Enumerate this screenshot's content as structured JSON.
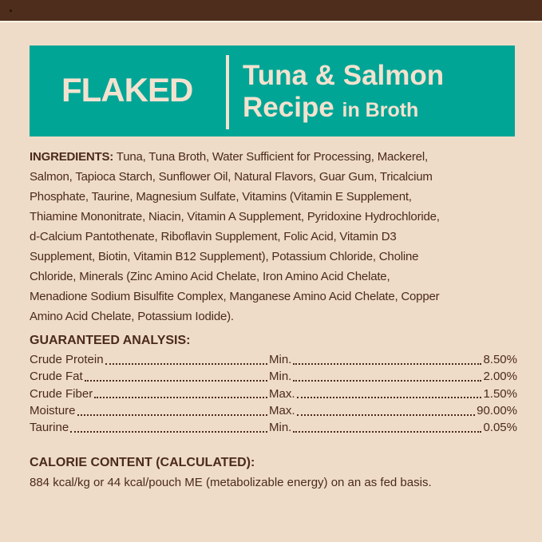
{
  "colors": {
    "background": "#efdcc8",
    "band": "#4e2d1c",
    "banner": "#00a596",
    "banner_text": "#f3e2cf",
    "text": "#4a2b1b"
  },
  "banner": {
    "style": "FLAKED",
    "title_line1": "Tuna & Salmon",
    "title_line2": "Recipe",
    "title_suffix": "in Broth"
  },
  "ingredients": {
    "label": "INGREDIENTS:",
    "lines": [
      " Tuna, Tuna Broth, Water Sufficient for Processing, Mackerel,",
      "Salmon, Tapioca Starch, Sunflower Oil, Natural Flavors, Guar Gum, Tricalcium",
      "Phosphate, Taurine, Magnesium Sulfate, Vitamins (Vitamin E Supplement,",
      "Thiamine Mononitrate, Niacin, Vitamin A Supplement, Pyridoxine Hydrochloride,",
      "d-Calcium Pantothenate, Riboflavin Supplement, Folic Acid, Vitamin D3",
      "Supplement, Biotin, Vitamin B12 Supplement), Potassium Chloride, Choline",
      "Chloride, Minerals (Zinc Amino Acid Chelate, Iron Amino Acid Chelate,",
      "Menadione Sodium Bisulfite Complex, Manganese Amino Acid Chelate, Copper",
      "Amino Acid Chelate, Potassium Iodide)."
    ]
  },
  "analysis": {
    "heading": "GUARANTEED ANALYSIS:",
    "rows": [
      {
        "name": "Crude Protein",
        "basis": "Min.",
        "value": "8.50%"
      },
      {
        "name": "Crude Fat",
        "basis": "Min.",
        "value": "2.00%"
      },
      {
        "name": "Crude Fiber",
        "basis": "Max.",
        "value": "1.50%"
      },
      {
        "name": "Moisture",
        "basis": "Max.",
        "value": "90.00%"
      },
      {
        "name": "Taurine",
        "basis": "Min.",
        "value": "0.05%"
      }
    ]
  },
  "calorie": {
    "heading": "CALORIE CONTENT (CALCULATED):",
    "text": "884 kcal/kg or 44 kcal/pouch ME (metabolizable energy) on an as fed basis."
  }
}
